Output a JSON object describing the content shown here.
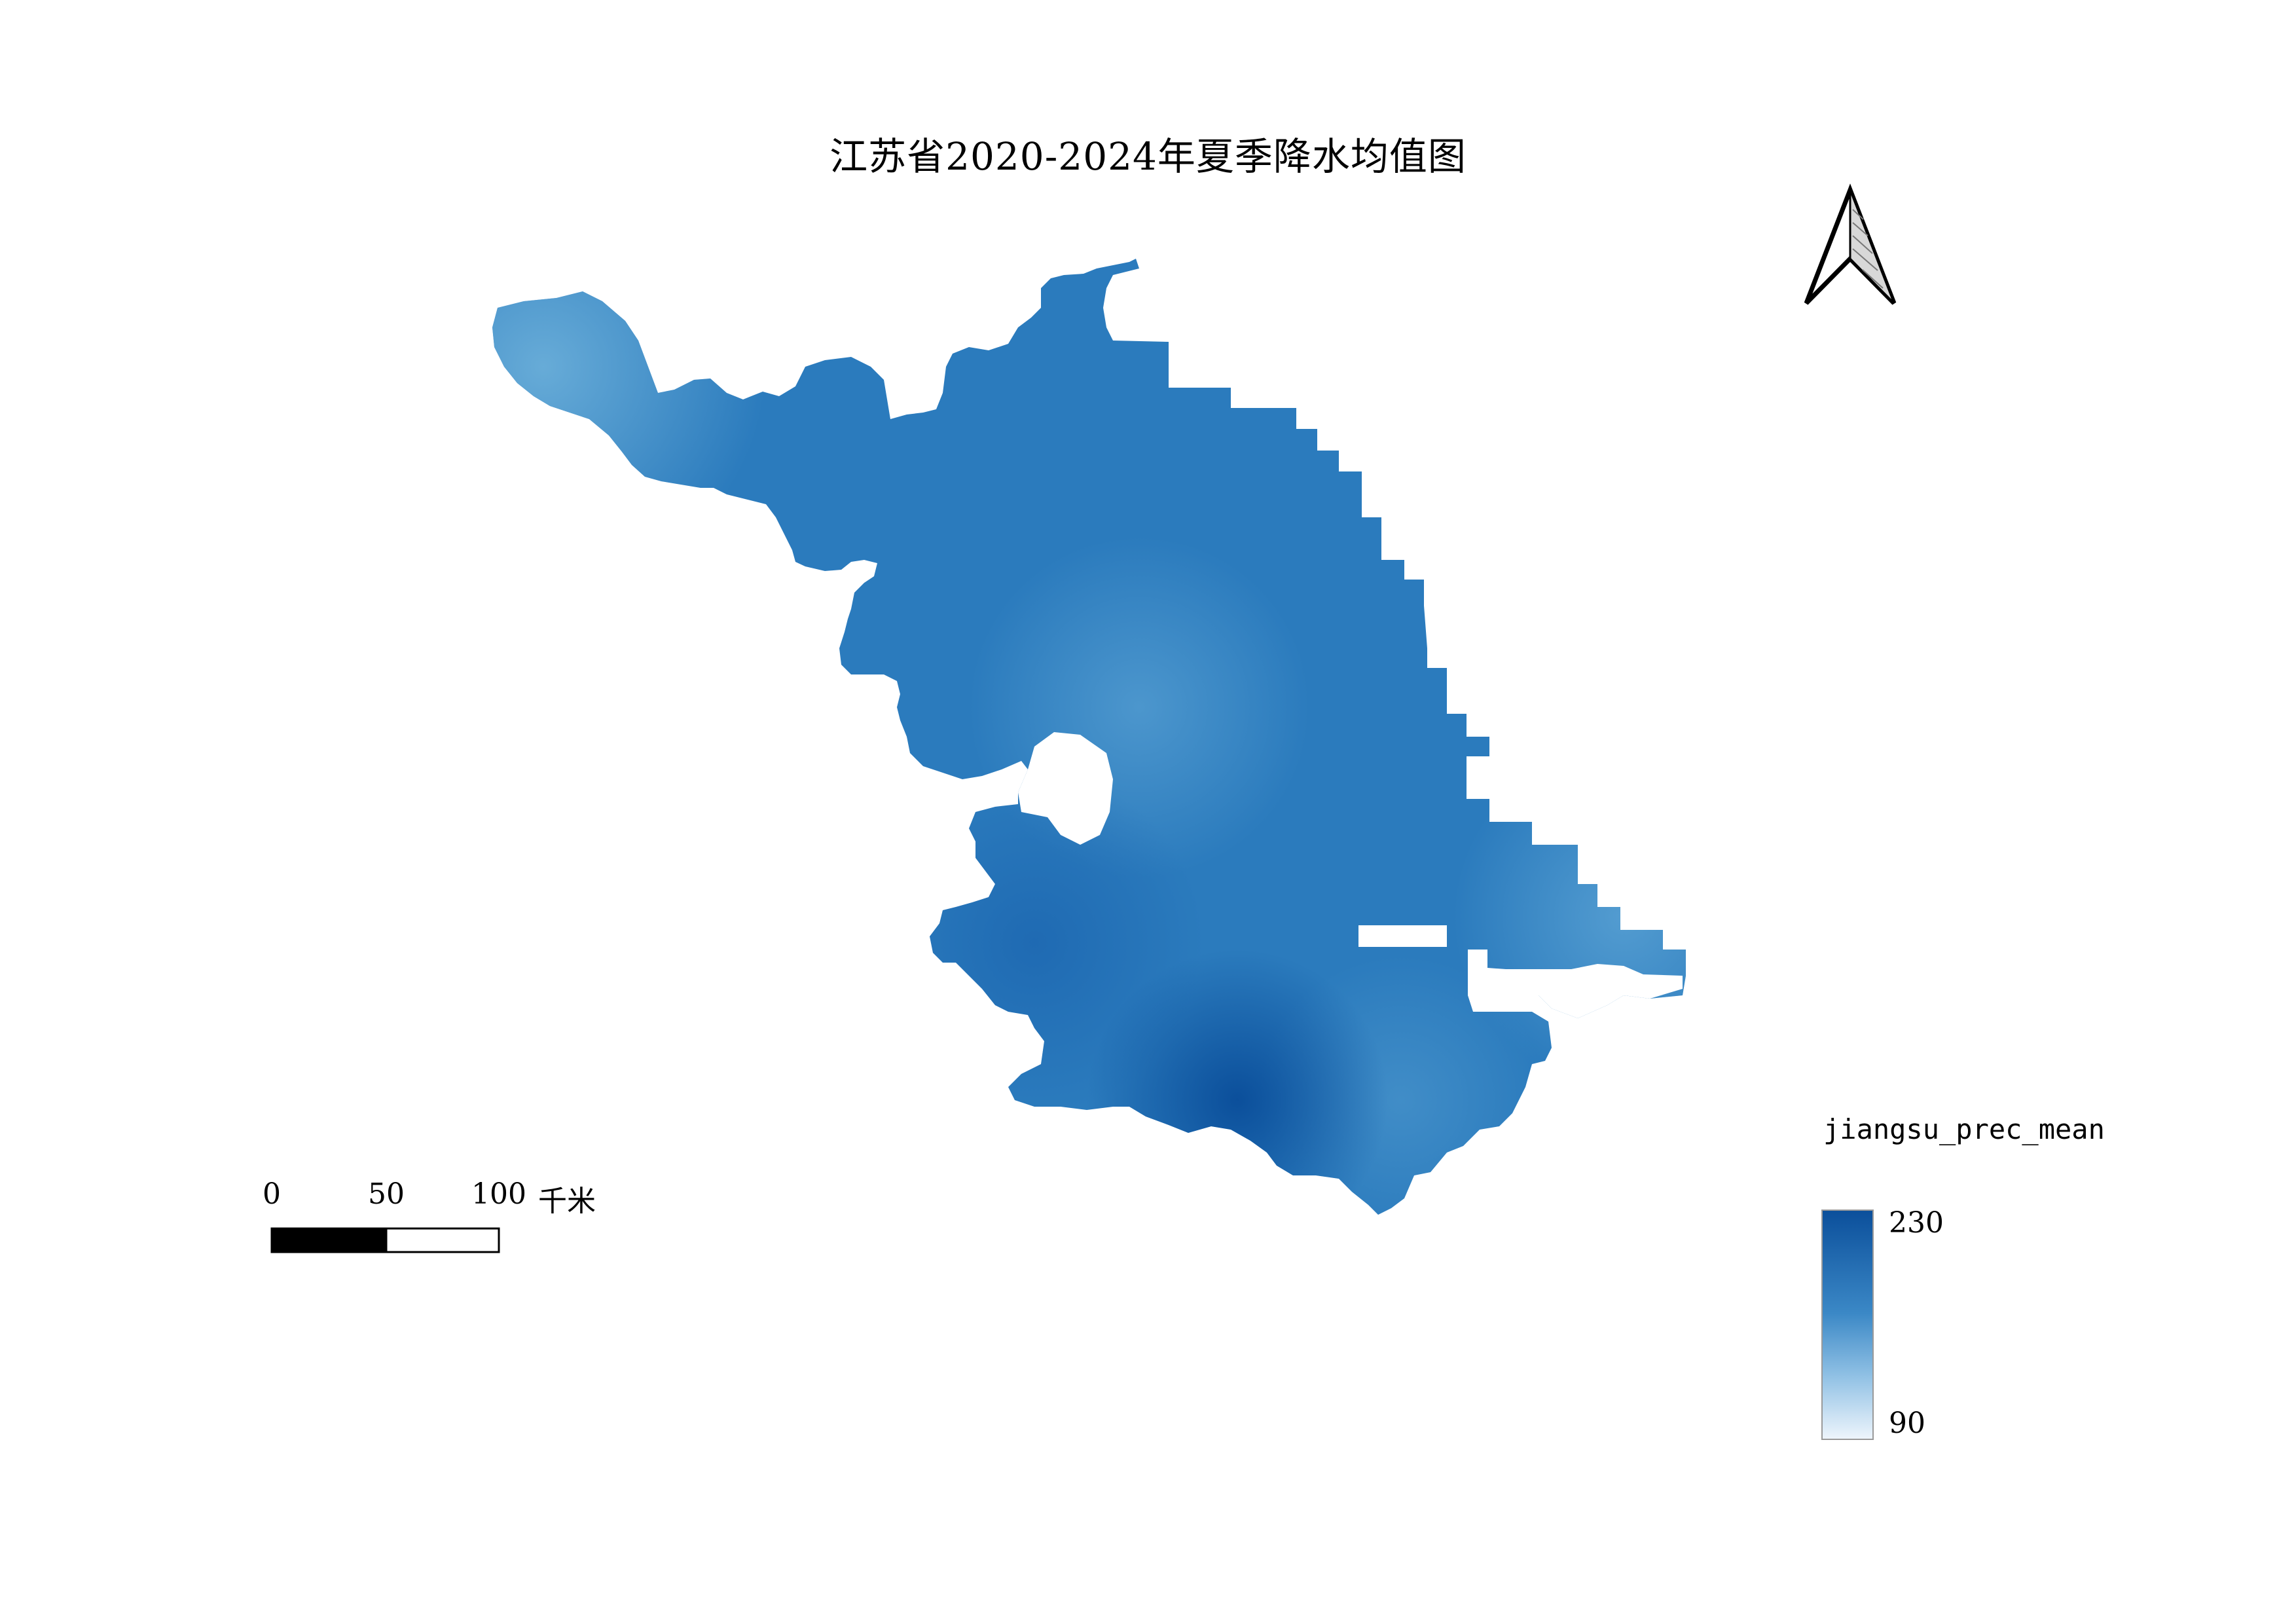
{
  "title": "江苏省2020-2024年夏季降水均值图",
  "layer": {
    "name": "jiangsu_prec_mean",
    "color_ramp": [
      "#0b4f9b",
      "#1f6fb8",
      "#5aa2d4",
      "#e9f2fb"
    ],
    "region_fill": "#2b7bbd"
  },
  "legend": {
    "title": "jiangsu_prec_mean",
    "max_label": "230",
    "min_label": "90",
    "max_value": 230,
    "min_value": 90
  },
  "scale_bar": {
    "labels": [
      "0",
      "50",
      "100"
    ],
    "unit": "千米"
  },
  "north_arrow": {
    "icon": "north-arrow-icon"
  }
}
